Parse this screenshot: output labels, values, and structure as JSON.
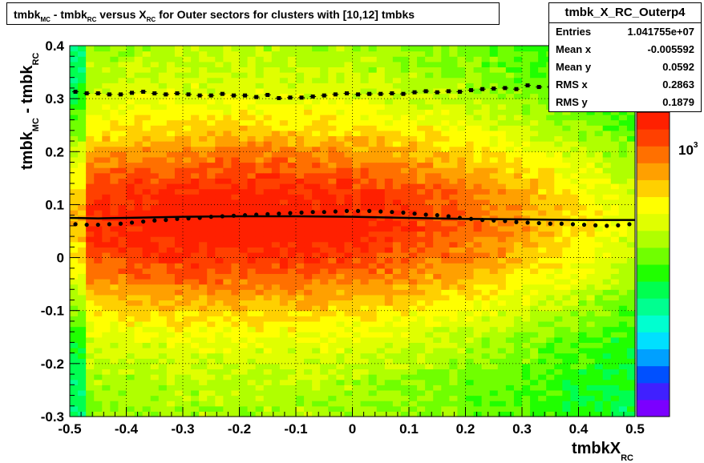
{
  "title": {
    "parts": [
      {
        "text": "tmbk"
      },
      {
        "sub": "MC"
      },
      {
        "text": " - tmbk"
      },
      {
        "sub": "RC"
      },
      {
        "text": " versus X"
      },
      {
        "sub": "RC"
      },
      {
        "text": " for Outer sectors for clusters with [10,12] tmbks"
      }
    ]
  },
  "stats": {
    "name": "tmbk_X_RC_Outerp4",
    "rows": [
      {
        "label": "Entries",
        "value": "1.041755e+07"
      },
      {
        "label": "Mean x",
        "value": "-0.005592"
      },
      {
        "label": "Mean y",
        "value": "0.0592"
      },
      {
        "label": "RMS x",
        "value": "0.2863"
      },
      {
        "label": "RMS y",
        "value": "0.1879"
      }
    ]
  },
  "colorbar": {
    "label_main": "10",
    "label_exp": "3"
  },
  "chart_data": {
    "type": "heatmap",
    "xlabel": {
      "main": "tmbkX",
      "sub": "RC"
    },
    "ylabel": {
      "parts": [
        {
          "text": "tmbk"
        },
        {
          "sub": "MC"
        },
        {
          "text": " - tmbk"
        },
        {
          "sub": "RC"
        }
      ]
    },
    "xlim": [
      -0.5,
      0.5
    ],
    "ylim": [
      -0.3,
      0.4
    ],
    "xticks": [
      "-0.5",
      "-0.4",
      "-0.3",
      "-0.2",
      "-0.1",
      "0",
      "0.1",
      "0.2",
      "0.3",
      "0.4",
      "0.5"
    ],
    "yticks": [
      "-0.3",
      "-0.2",
      "-0.1",
      "0",
      "0.1",
      "0.2",
      "0.3",
      "0.4"
    ],
    "grid": true,
    "palette": [
      "#7b00ff",
      "#4020ff",
      "#0050ff",
      "#00a0ff",
      "#00e0ff",
      "#00ffd0",
      "#00ff90",
      "#00ff50",
      "#20ff00",
      "#70ff00",
      "#b0ff00",
      "#e0ff00",
      "#ffff00",
      "#ffd000",
      "#ffa000",
      "#ff7000",
      "#ff4000",
      "#ff2000"
    ],
    "density": {
      "center_y": 0.07,
      "sigma_y": 0.13,
      "x_peak": -0.2,
      "x_spread": 0.6
    },
    "series": [
      {
        "name": "mean",
        "style": "fit-line",
        "x": [
          -0.5,
          -0.45,
          -0.4,
          -0.3,
          -0.2,
          -0.1,
          0,
          0.1,
          0.2,
          0.3,
          0.4,
          0.5
        ],
        "values": [
          0.075,
          0.074,
          0.075,
          0.077,
          0.078,
          0.078,
          0.077,
          0.075,
          0.073,
          0.072,
          0.071,
          0.071
        ]
      },
      {
        "name": "profile",
        "style": "markers",
        "x": [
          -0.49,
          -0.47,
          -0.45,
          -0.43,
          -0.41,
          -0.39,
          -0.37,
          -0.35,
          -0.33,
          -0.31,
          -0.29,
          -0.27,
          -0.25,
          -0.23,
          -0.21,
          -0.19,
          -0.17,
          -0.15,
          -0.13,
          -0.11,
          -0.09,
          -0.07,
          -0.05,
          -0.03,
          -0.01,
          0.01,
          0.03,
          0.05,
          0.07,
          0.09,
          0.11,
          0.13,
          0.15,
          0.17,
          0.19,
          0.21,
          0.23,
          0.25,
          0.27,
          0.29,
          0.31,
          0.33,
          0.35,
          0.37,
          0.39,
          0.41,
          0.43,
          0.45,
          0.47,
          0.49
        ],
        "values": [
          0.063,
          0.062,
          0.062,
          0.063,
          0.064,
          0.066,
          0.068,
          0.07,
          0.071,
          0.073,
          0.074,
          0.075,
          0.077,
          0.078,
          0.079,
          0.08,
          0.081,
          0.082,
          0.083,
          0.084,
          0.085,
          0.086,
          0.086,
          0.087,
          0.088,
          0.088,
          0.088,
          0.087,
          0.086,
          0.085,
          0.083,
          0.081,
          0.08,
          0.078,
          0.075,
          0.073,
          0.071,
          0.07,
          0.069,
          0.067,
          0.066,
          0.065,
          0.064,
          0.064,
          0.063,
          0.062,
          0.061,
          0.06,
          0.061,
          0.063
        ]
      },
      {
        "name": "upper",
        "style": "squares",
        "x": [
          -0.49,
          -0.47,
          -0.45,
          -0.43,
          -0.41,
          -0.39,
          -0.37,
          -0.35,
          -0.33,
          -0.31,
          -0.29,
          -0.27,
          -0.25,
          -0.23,
          -0.21,
          -0.19,
          -0.17,
          -0.15,
          -0.13,
          -0.11,
          -0.09,
          -0.07,
          -0.05,
          -0.03,
          -0.01,
          0.01,
          0.03,
          0.05,
          0.07,
          0.09,
          0.11,
          0.13,
          0.15,
          0.17,
          0.19,
          0.21,
          0.23,
          0.25,
          0.27,
          0.29,
          0.31,
          0.33,
          0.35,
          0.37,
          0.39,
          0.41,
          0.43,
          0.45,
          0.47,
          0.49
        ],
        "values": [
          0.313,
          0.31,
          0.31,
          0.308,
          0.308,
          0.311,
          0.313,
          0.31,
          0.308,
          0.31,
          0.308,
          0.306,
          0.306,
          0.309,
          0.306,
          0.306,
          0.303,
          0.307,
          0.301,
          0.302,
          0.302,
          0.304,
          0.306,
          0.308,
          0.31,
          0.308,
          0.309,
          0.309,
          0.31,
          0.309,
          0.312,
          0.314,
          0.312,
          0.314,
          0.313,
          0.316,
          0.318,
          0.319,
          0.32,
          0.318,
          0.325,
          0.322,
          0.322,
          0.32,
          0.315,
          0.318,
          0.315,
          0.315,
          0.316,
          0.318
        ]
      }
    ]
  }
}
